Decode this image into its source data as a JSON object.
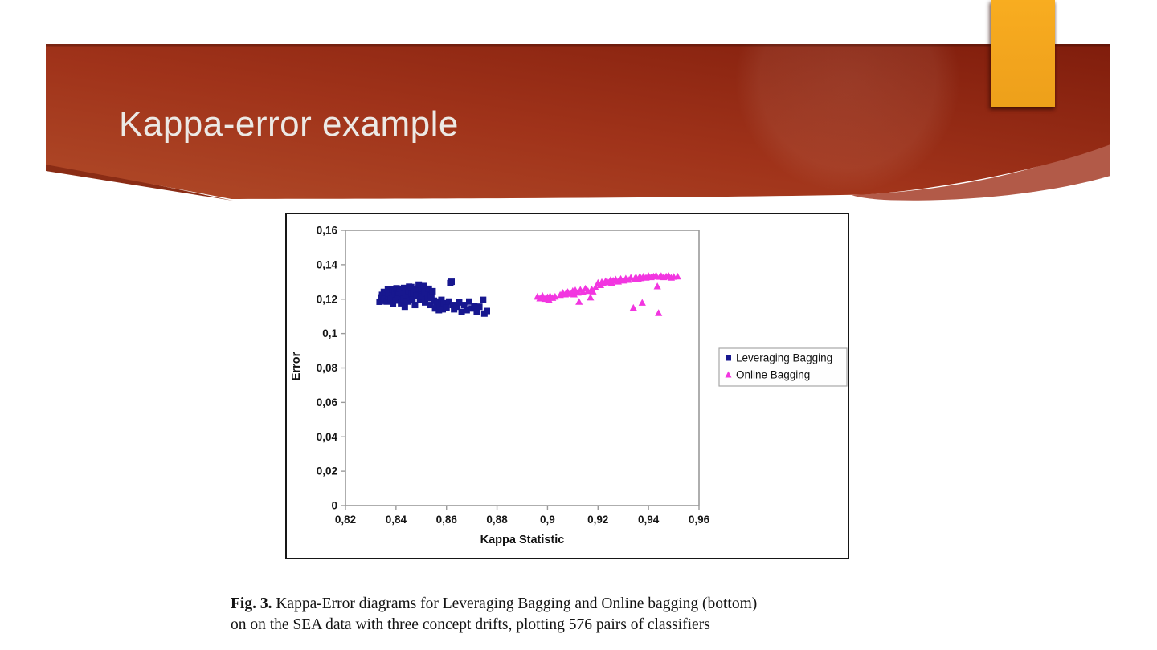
{
  "slide": {
    "title": "Kappa-error example",
    "caption_label": "Fig. 3.",
    "caption_line1": "Kappa-Error diagrams for Leveraging Bagging and Online bagging (bottom)",
    "caption_line2": "on on the SEA data with three concept drifts, plotting 576 pairs of classifiers"
  },
  "theme": {
    "banner_light": "#b04a28",
    "banner_mid": "#a0331a",
    "banner_dark": "#801d0c",
    "banner_wedge": "#8a2c15",
    "swoosh": "#b25a48",
    "accent_rect": "#f2a41d",
    "title_color": "#ece9e5"
  },
  "chart_data": {
    "type": "scatter",
    "title": "",
    "xlabel": "Kappa Statistic",
    "ylabel": "Error",
    "xlim": [
      0.82,
      0.96
    ],
    "ylim": [
      0,
      0.16
    ],
    "grid": false,
    "legend_position": "right",
    "decimal_separator": ",",
    "x_ticks": [
      {
        "v": 0.82,
        "label": "0,82"
      },
      {
        "v": 0.84,
        "label": "0,84"
      },
      {
        "v": 0.86,
        "label": "0,86"
      },
      {
        "v": 0.88,
        "label": "0,88"
      },
      {
        "v": 0.9,
        "label": "0,9"
      },
      {
        "v": 0.92,
        "label": "0,92"
      },
      {
        "v": 0.94,
        "label": "0,94"
      },
      {
        "v": 0.96,
        "label": "0,96"
      }
    ],
    "y_ticks": [
      {
        "v": 0,
        "label": "0"
      },
      {
        "v": 0.02,
        "label": "0,02"
      },
      {
        "v": 0.04,
        "label": "0,04"
      },
      {
        "v": 0.06,
        "label": "0,06"
      },
      {
        "v": 0.08,
        "label": "0,08"
      },
      {
        "v": 0.1,
        "label": "0,1"
      },
      {
        "v": 0.12,
        "label": "0,12"
      },
      {
        "v": 0.14,
        "label": "0,14"
      },
      {
        "v": 0.16,
        "label": "0,16"
      }
    ],
    "series": [
      {
        "name": "Leveraging Bagging",
        "marker": "square",
        "color": "#17178f",
        "points": [
          [
            0.8335,
            0.1185
          ],
          [
            0.834,
            0.121
          ],
          [
            0.8345,
            0.1225
          ],
          [
            0.835,
            0.119
          ],
          [
            0.8352,
            0.1242
          ],
          [
            0.8355,
            0.1205
          ],
          [
            0.836,
            0.124
          ],
          [
            0.8363,
            0.1186
          ],
          [
            0.8368,
            0.1256
          ],
          [
            0.837,
            0.1215
          ],
          [
            0.8375,
            0.1235
          ],
          [
            0.838,
            0.1201
          ],
          [
            0.8385,
            0.1255
          ],
          [
            0.8388,
            0.1172
          ],
          [
            0.839,
            0.1222
          ],
          [
            0.8395,
            0.1242
          ],
          [
            0.84,
            0.1192
          ],
          [
            0.8402,
            0.1263
          ],
          [
            0.8405,
            0.1232
          ],
          [
            0.841,
            0.121
          ],
          [
            0.8413,
            0.1237
          ],
          [
            0.8415,
            0.126
          ],
          [
            0.842,
            0.1176
          ],
          [
            0.8423,
            0.1198
          ],
          [
            0.8425,
            0.1235
          ],
          [
            0.843,
            0.1202
          ],
          [
            0.8432,
            0.1265
          ],
          [
            0.8435,
            0.1156
          ],
          [
            0.844,
            0.1226
          ],
          [
            0.8443,
            0.1247
          ],
          [
            0.8445,
            0.1186
          ],
          [
            0.845,
            0.1246
          ],
          [
            0.8452,
            0.1272
          ],
          [
            0.8455,
            0.1212
          ],
          [
            0.846,
            0.127
          ],
          [
            0.8462,
            0.1227
          ],
          [
            0.8465,
            0.1196
          ],
          [
            0.847,
            0.1236
          ],
          [
            0.8475,
            0.1166
          ],
          [
            0.848,
            0.1256
          ],
          [
            0.8483,
            0.1222
          ],
          [
            0.8487,
            0.1262
          ],
          [
            0.849,
            0.1284
          ],
          [
            0.8495,
            0.1196
          ],
          [
            0.85,
            0.124
          ],
          [
            0.8502,
            0.1217
          ],
          [
            0.8505,
            0.1262
          ],
          [
            0.851,
            0.1276
          ],
          [
            0.8512,
            0.1243
          ],
          [
            0.8515,
            0.1181
          ],
          [
            0.852,
            0.1236
          ],
          [
            0.8525,
            0.1206
          ],
          [
            0.853,
            0.126
          ],
          [
            0.8535,
            0.1166
          ],
          [
            0.854,
            0.1221
          ],
          [
            0.8545,
            0.1246
          ],
          [
            0.855,
            0.1191
          ],
          [
            0.8555,
            0.1146
          ],
          [
            0.856,
            0.1171
          ],
          [
            0.8565,
            0.1186
          ],
          [
            0.857,
            0.1136
          ],
          [
            0.8575,
            0.1161
          ],
          [
            0.858,
            0.1196
          ],
          [
            0.8585,
            0.1141
          ],
          [
            0.859,
            0.1176
          ],
          [
            0.86,
            0.1151
          ],
          [
            0.861,
            0.1186
          ],
          [
            0.8615,
            0.1293
          ],
          [
            0.862,
            0.1301
          ],
          [
            0.8625,
            0.1166
          ],
          [
            0.863,
            0.1141
          ],
          [
            0.864,
            0.1156
          ],
          [
            0.865,
            0.1181
          ],
          [
            0.866,
            0.1126
          ],
          [
            0.867,
            0.1166
          ],
          [
            0.868,
            0.1136
          ],
          [
            0.869,
            0.1186
          ],
          [
            0.87,
            0.1146
          ],
          [
            0.871,
            0.1161
          ],
          [
            0.872,
            0.1126
          ],
          [
            0.873,
            0.1156
          ],
          [
            0.8745,
            0.1196
          ],
          [
            0.875,
            0.1116
          ],
          [
            0.876,
            0.1131
          ]
        ]
      },
      {
        "name": "Online Bagging",
        "marker": "triangle",
        "color": "#f236e0",
        "points": [
          [
            0.896,
            0.1215
          ],
          [
            0.897,
            0.1205
          ],
          [
            0.898,
            0.122
          ],
          [
            0.899,
            0.1202
          ],
          [
            0.9,
            0.1212
          ],
          [
            0.9005,
            0.1198
          ],
          [
            0.901,
            0.1218
          ],
          [
            0.902,
            0.1208
          ],
          [
            0.903,
            0.1215
          ],
          [
            0.905,
            0.1225
          ],
          [
            0.906,
            0.1238
          ],
          [
            0.907,
            0.1228
          ],
          [
            0.908,
            0.1242
          ],
          [
            0.909,
            0.1232
          ],
          [
            0.91,
            0.1248
          ],
          [
            0.9105,
            0.1228
          ],
          [
            0.911,
            0.1252
          ],
          [
            0.912,
            0.1238
          ],
          [
            0.9125,
            0.1185
          ],
          [
            0.913,
            0.1255
          ],
          [
            0.914,
            0.1242
          ],
          [
            0.915,
            0.1262
          ],
          [
            0.916,
            0.1248
          ],
          [
            0.917,
            0.121
          ],
          [
            0.9175,
            0.1258
          ],
          [
            0.918,
            0.1245
          ],
          [
            0.919,
            0.1268
          ],
          [
            0.92,
            0.1295
          ],
          [
            0.921,
            0.1282
          ],
          [
            0.9215,
            0.13
          ],
          [
            0.922,
            0.1292
          ],
          [
            0.923,
            0.1305
          ],
          [
            0.924,
            0.1298
          ],
          [
            0.925,
            0.1312
          ],
          [
            0.9255,
            0.1295
          ],
          [
            0.926,
            0.1308
          ],
          [
            0.927,
            0.1315
          ],
          [
            0.928,
            0.1302
          ],
          [
            0.929,
            0.1318
          ],
          [
            0.93,
            0.1308
          ],
          [
            0.931,
            0.132
          ],
          [
            0.932,
            0.1312
          ],
          [
            0.933,
            0.1325
          ],
          [
            0.934,
            0.115
          ],
          [
            0.9345,
            0.1318
          ],
          [
            0.935,
            0.1328
          ],
          [
            0.936,
            0.1315
          ],
          [
            0.9365,
            0.133
          ],
          [
            0.937,
            0.1322
          ],
          [
            0.9375,
            0.118
          ],
          [
            0.938,
            0.1332
          ],
          [
            0.939,
            0.1325
          ],
          [
            0.94,
            0.1335
          ],
          [
            0.941,
            0.1328
          ],
          [
            0.942,
            0.1332
          ],
          [
            0.943,
            0.1338
          ],
          [
            0.9435,
            0.1275
          ],
          [
            0.944,
            0.112
          ],
          [
            0.9445,
            0.133
          ],
          [
            0.945,
            0.1335
          ],
          [
            0.946,
            0.1328
          ],
          [
            0.947,
            0.1332
          ],
          [
            0.948,
            0.1335
          ],
          [
            0.949,
            0.1325
          ],
          [
            0.95,
            0.133
          ],
          [
            0.9515,
            0.1332
          ]
        ]
      }
    ]
  }
}
